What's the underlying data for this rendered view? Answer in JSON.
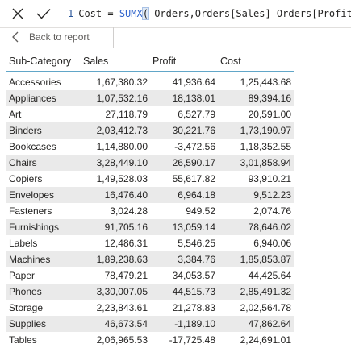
{
  "formula": {
    "line_number": "1",
    "measure": "Cost",
    "equals": " = ",
    "function": "SUMX",
    "open_paren": "(",
    "args": " Orders,Orders[Sales]-Orders[Profit]",
    "close_paren": ")"
  },
  "icons": {
    "cancel": "close-icon",
    "commit": "checkmark-icon",
    "back": "chevron-left-icon"
  },
  "back_link": {
    "label": "Back to report"
  },
  "table": {
    "headers": [
      "Sub-Category",
      "Sales",
      "Profit",
      "Cost"
    ],
    "rows": [
      [
        "Accessories",
        "1,67,380.32",
        "41,936.64",
        "1,25,443.68"
      ],
      [
        "Appliances",
        "1,07,532.16",
        "18,138.01",
        "89,394.16"
      ],
      [
        "Art",
        "27,118.79",
        "6,527.79",
        "20,591.00"
      ],
      [
        "Binders",
        "2,03,412.73",
        "30,221.76",
        "1,73,190.97"
      ],
      [
        "Bookcases",
        "1,14,880.00",
        "-3,472.56",
        "1,18,352.55"
      ],
      [
        "Chairs",
        "3,28,449.10",
        "26,590.17",
        "3,01,858.94"
      ],
      [
        "Copiers",
        "1,49,528.03",
        "55,617.82",
        "93,910.21"
      ],
      [
        "Envelopes",
        "16,476.40",
        "6,964.18",
        "9,512.23"
      ],
      [
        "Fasteners",
        "3,024.28",
        "949.52",
        "2,074.76"
      ],
      [
        "Furnishings",
        "91,705.16",
        "13,059.14",
        "78,646.02"
      ],
      [
        "Labels",
        "12,486.31",
        "5,546.25",
        "6,940.06"
      ],
      [
        "Machines",
        "1,89,238.63",
        "3,384.76",
        "1,85,853.87"
      ],
      [
        "Paper",
        "78,479.21",
        "34,053.57",
        "44,425.64"
      ],
      [
        "Phones",
        "3,30,007.05",
        "44,515.73",
        "2,85,491.32"
      ],
      [
        "Storage",
        "2,23,843.61",
        "21,278.83",
        "2,02,564.78"
      ],
      [
        "Supplies",
        "46,673.54",
        "-1,189.10",
        "47,862.64"
      ],
      [
        "Tables",
        "2,06,965.53",
        "-17,725.48",
        "2,24,691.01"
      ]
    ]
  }
}
